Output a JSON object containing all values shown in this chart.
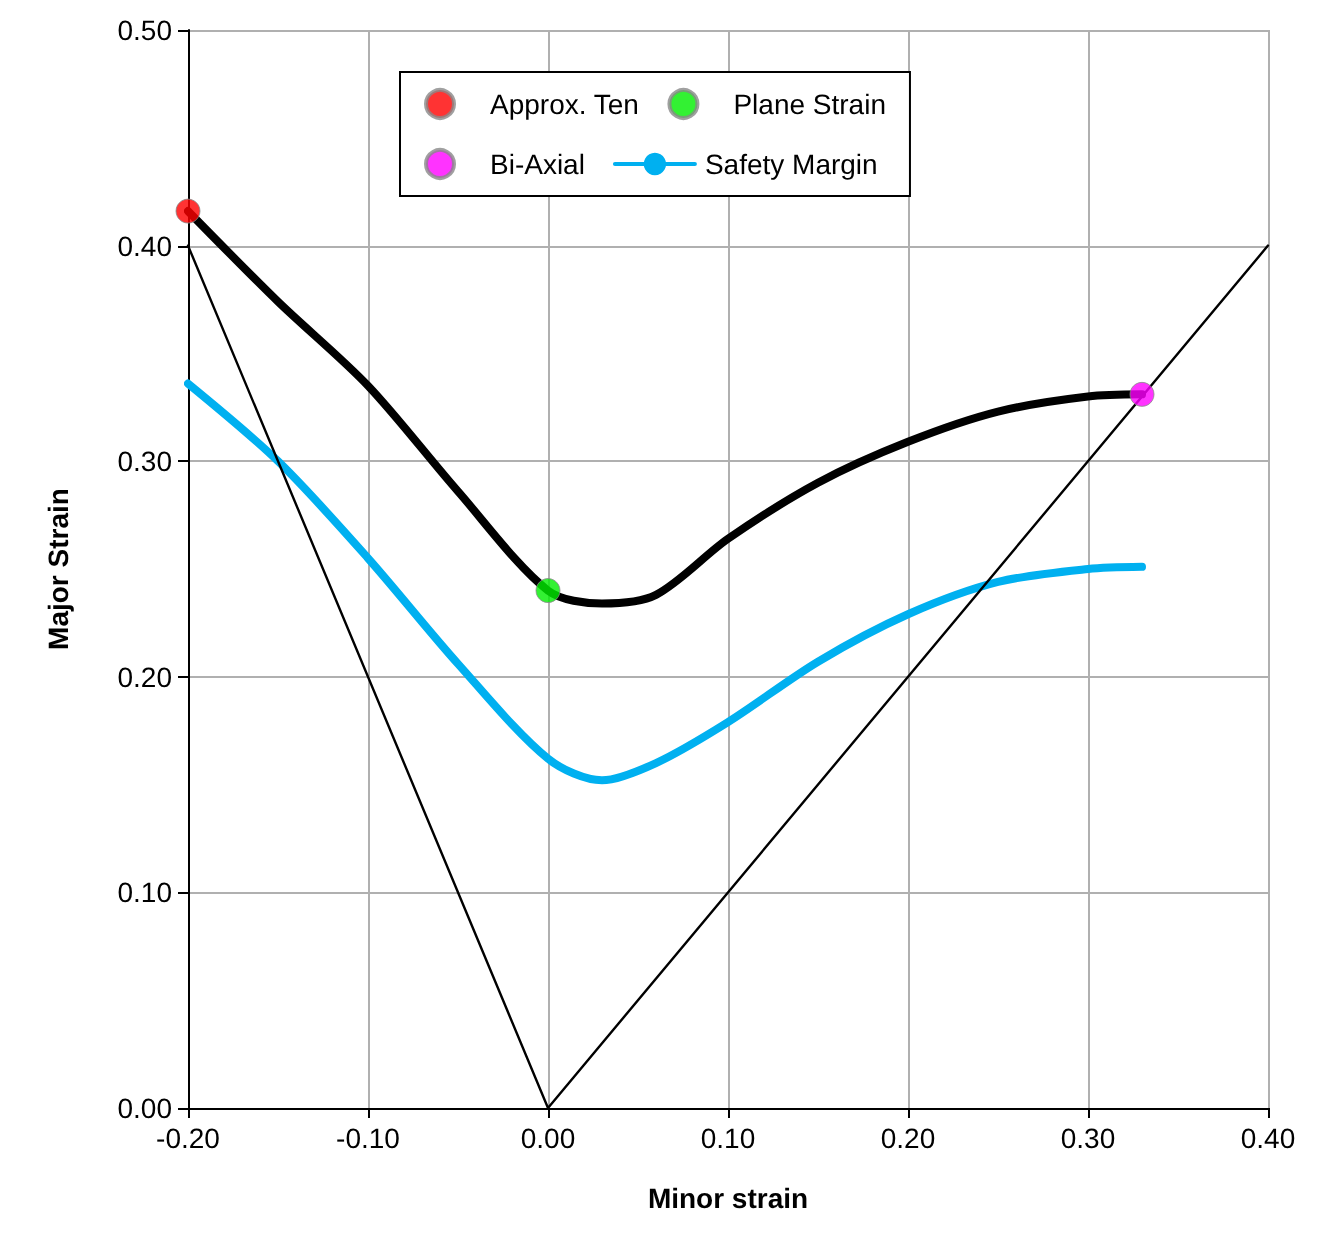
{
  "chart_data": {
    "type": "line",
    "xlabel": "Minor strain",
    "ylabel": "Major Strain",
    "xlim": [
      -0.2,
      0.4
    ],
    "ylim": [
      0,
      0.5
    ],
    "xticks": [
      {
        "value": -0.2,
        "label": "-0.20"
      },
      {
        "value": -0.1,
        "label": "-0.10"
      },
      {
        "value": 0,
        "label": "0.00"
      },
      {
        "value": 0.1,
        "label": "0.10"
      },
      {
        "value": 0.2,
        "label": "0.20"
      },
      {
        "value": 0.3,
        "label": "0.30"
      },
      {
        "value": 0.4,
        "label": "0.40"
      }
    ],
    "yticks": [
      {
        "value": 0,
        "label": "0.00"
      },
      {
        "value": 0.1,
        "label": "0.10"
      },
      {
        "value": 0.2,
        "label": "0.20"
      },
      {
        "value": 0.3,
        "label": "0.30"
      },
      {
        "value": 0.4,
        "label": "0.40"
      },
      {
        "value": 0.5,
        "label": "0.50"
      }
    ],
    "grid": true,
    "legend": "top",
    "series": [
      {
        "type": "line",
        "color": "#000000",
        "marker": "none",
        "x": [
          -0.2,
          -0.15,
          -0.1,
          -0.05,
          0,
          0.03,
          0.06,
          0.1,
          0.15,
          0.2,
          0.25,
          0.3,
          0.33
        ],
        "values": [
          0.416,
          0.374,
          0.335,
          0.286,
          0.24,
          0.234,
          0.238,
          0.264,
          0.29,
          0.309,
          0.323,
          0.33,
          0.331
        ]
      },
      {
        "type": "scatter",
        "name": "Approx. Ten",
        "color": "#ff0000",
        "marker": "circle",
        "x": [
          -0.2
        ],
        "values": [
          0.416
        ]
      },
      {
        "type": "scatter",
        "name": "Plane Strain",
        "color": "#00ee00",
        "marker": "circle",
        "x": [
          0
        ],
        "values": [
          0.24
        ]
      },
      {
        "type": "scatter",
        "name": "Bi-Axial",
        "color": "#ff00ff",
        "marker": "circle",
        "x": [
          0.33
        ],
        "values": [
          0.331
        ]
      },
      {
        "type": "line",
        "name": "Safety Margin",
        "color": "#00b0f0",
        "marker": "none",
        "x": [
          -0.2,
          -0.15,
          -0.1,
          -0.05,
          0,
          0.03,
          0.06,
          0.1,
          0.15,
          0.2,
          0.25,
          0.3,
          0.33
        ],
        "values": [
          0.336,
          0.3,
          0.255,
          0.206,
          0.162,
          0.152,
          0.16,
          0.179,
          0.207,
          0.229,
          0.244,
          0.25,
          0.251
        ]
      },
      {
        "type": "line",
        "color": "#000000",
        "marker": "none",
        "x": [
          -0.2,
          0,
          0.4
        ],
        "values": [
          0.4,
          0,
          0.4
        ]
      }
    ]
  }
}
